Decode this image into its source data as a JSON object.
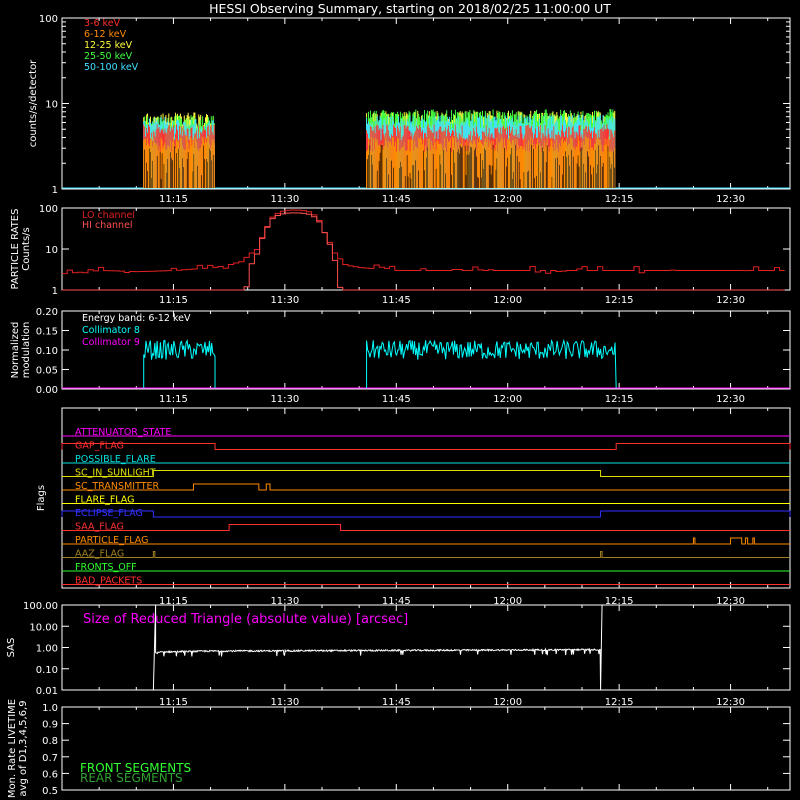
{
  "title": "HESSI Observing Summary, starting on 2018/02/25 11:00:00 UT",
  "colors": {
    "c3_6": "#ff3030",
    "c6_12": "#ff8c00",
    "c12_25": "#ffff40",
    "c25_50": "#40ff40",
    "c50_100": "#40e0ff",
    "particle": "#e02020",
    "coll8": "#00ffff",
    "coll9": "#ff00ff",
    "bg": "#000000",
    "fg": "#ffffff"
  },
  "time_ticks": [
    "11:15",
    "11:30",
    "11:45",
    "12:00",
    "12:15",
    "12:30"
  ],
  "chart_data": [
    {
      "type": "area",
      "name": "count-rates",
      "ylabel": "counts/s/detector",
      "yscale": "log",
      "ylim": [
        1,
        100
      ],
      "yticks": [
        "1",
        "10",
        "100"
      ],
      "legend": [
        "3-6 keV",
        "6-12 keV",
        "12-25 keV",
        "25-50 keV",
        "50-100 keV"
      ],
      "x_minutes": [
        0,
        11,
        11.1,
        20.5,
        20.6,
        41,
        41.1,
        74.5,
        74.6,
        98
      ],
      "series": [
        {
          "name": "3-6 keV",
          "values": [
            1,
            1,
            4.5,
            4.5,
            1,
            1,
            4.5,
            4.5,
            1,
            1
          ]
        },
        {
          "name": "6-12 keV",
          "values": [
            1,
            1,
            3.3,
            3.3,
            1,
            1,
            3.3,
            3.3,
            1,
            1
          ]
        },
        {
          "name": "12-25 keV",
          "values": [
            1,
            1,
            6.2,
            6.2,
            1,
            1,
            6.5,
            6.5,
            1,
            1
          ]
        },
        {
          "name": "25-50 keV",
          "values": [
            1,
            1,
            5.8,
            5.8,
            1,
            1,
            6.8,
            6.8,
            1,
            1
          ]
        },
        {
          "name": "50-100 keV",
          "values": [
            1,
            1,
            5.5,
            5.5,
            1,
            1,
            5.8,
            5.8,
            1,
            1
          ]
        }
      ]
    },
    {
      "type": "line",
      "name": "particle-rates",
      "ylabel_lines": [
        "PARTICLE RATES",
        "Counts/s"
      ],
      "yscale": "log",
      "ylim": [
        1,
        100
      ],
      "yticks": [
        "1",
        "10",
        "100"
      ],
      "legend": [
        "LO channel",
        "HI channel"
      ],
      "series": [
        {
          "name": "LO channel",
          "x": [
            0,
            5,
            10,
            15,
            20,
            22,
            24,
            26,
            27,
            28,
            29,
            30,
            31,
            32,
            33,
            34,
            35,
            36,
            37,
            38,
            40,
            45,
            50,
            60,
            70,
            80,
            90,
            98
          ],
          "values": [
            2.5,
            3,
            2.8,
            3,
            3.5,
            4,
            5,
            10,
            25,
            60,
            80,
            88,
            90,
            88,
            80,
            60,
            25,
            10,
            5,
            4,
            3.5,
            3,
            3,
            3,
            3,
            3,
            3,
            3
          ]
        },
        {
          "name": "HI channel",
          "x": [
            0,
            24,
            24.5,
            26,
            27,
            28,
            29,
            30,
            31,
            32,
            33,
            34,
            35,
            36,
            37,
            37.5,
            38,
            98
          ],
          "values": [
            1,
            1,
            1.2,
            8,
            25,
            55,
            70,
            75,
            76,
            75,
            70,
            55,
            25,
            8,
            1.2,
            1,
            1,
            1
          ]
        }
      ]
    },
    {
      "type": "line",
      "name": "modulation",
      "ylabel_lines": [
        "Normalized",
        "modulation"
      ],
      "ylim": [
        0,
        0.2
      ],
      "yticks": [
        "0.00",
        "0.05",
        "0.10",
        "0.15",
        "0.20"
      ],
      "legend_title": "Energy band: 6-12 keV",
      "legend": [
        "Collimator 8",
        "Collimator 9"
      ],
      "series": [
        {
          "name": "Collimator 8",
          "segments": [
            [
              11,
              20.6,
              0.1
            ],
            [
              41,
              74.6,
              0.1
            ]
          ]
        },
        {
          "name": "Collimator 9",
          "value": 0.0
        }
      ]
    },
    {
      "type": "line",
      "name": "flags",
      "ylabel": "Flags",
      "flags": [
        {
          "label": "ATTENUATOR_STATE",
          "color": "#ff00ff",
          "high": []
        },
        {
          "label": "GAP_FLAG",
          "color": "#ff3030",
          "high": [
            [
              0,
              20.6
            ],
            [
              74.6,
              98
            ]
          ]
        },
        {
          "label": "POSSIBLE_FLARE",
          "color": "#00e0e0",
          "high": []
        },
        {
          "label": "SC_IN_SUNLIGHT",
          "color": "#e0e000",
          "high": [
            [
              12.3,
              72.5
            ]
          ]
        },
        {
          "label": "SC_TRANSMITTER",
          "color": "#ff8c00",
          "high": [
            [
              17.7,
              26.5
            ],
            [
              27.5,
              28.0
            ]
          ]
        },
        {
          "label": "FLARE_FLAG",
          "color": "#ffff00",
          "high": []
        },
        {
          "label": "ECLIPSE_FLAG",
          "color": "#3030ff",
          "high": [
            [
              0,
              12.3
            ],
            [
              72.5,
              98
            ]
          ]
        },
        {
          "label": "SAA_FLAG",
          "color": "#ff3030",
          "high": [
            [
              22.5,
              37.5
            ]
          ]
        },
        {
          "label": "PARTICLE_FLAG",
          "color": "#ff8c00",
          "high": [
            [
              85,
              85.2
            ],
            [
              90,
              91.5
            ],
            [
              92,
              92.3
            ],
            [
              93,
              93.2
            ]
          ]
        },
        {
          "label": "AAZ_FLAG",
          "color": "#a08020",
          "high": [
            [
              12.3,
              12.5
            ],
            [
              72.5,
              72.7
            ]
          ]
        },
        {
          "label": "FRONTS_OFF",
          "color": "#30ff30",
          "high": []
        },
        {
          "label": "BAD_PACKETS",
          "color": "#ff3030",
          "high": []
        }
      ]
    },
    {
      "type": "line",
      "name": "sas",
      "ylabel": "SAS",
      "yscale": "log",
      "ylim": [
        0.01,
        100
      ],
      "yticks": [
        "0.01",
        "0.10",
        "1.00",
        "10.00",
        "100.00"
      ],
      "annotation": "Size of Reduced Triangle (absolute value) [arcsec]",
      "x": [
        12.3,
        12.6,
        13.5,
        20,
        40,
        60,
        72.5,
        72.7
      ],
      "values": [
        0.01,
        0.55,
        0.62,
        0.68,
        0.72,
        0.76,
        0.8,
        100
      ]
    },
    {
      "type": "line",
      "name": "livetime",
      "ylabel_lines": [
        "Mon. Rate LIVETIME",
        "avg of D1,3,4,5,6,9"
      ],
      "ylim": [
        0.5,
        1.0
      ],
      "yticks": [
        "0.5",
        "0.6",
        "0.7",
        "0.8",
        "0.9",
        "1.0"
      ],
      "legend": [
        "FRONT SEGMENTS",
        "REAR SEGMENTS"
      ],
      "legend_colors": [
        "#30ff30",
        "#30a030"
      ]
    }
  ]
}
